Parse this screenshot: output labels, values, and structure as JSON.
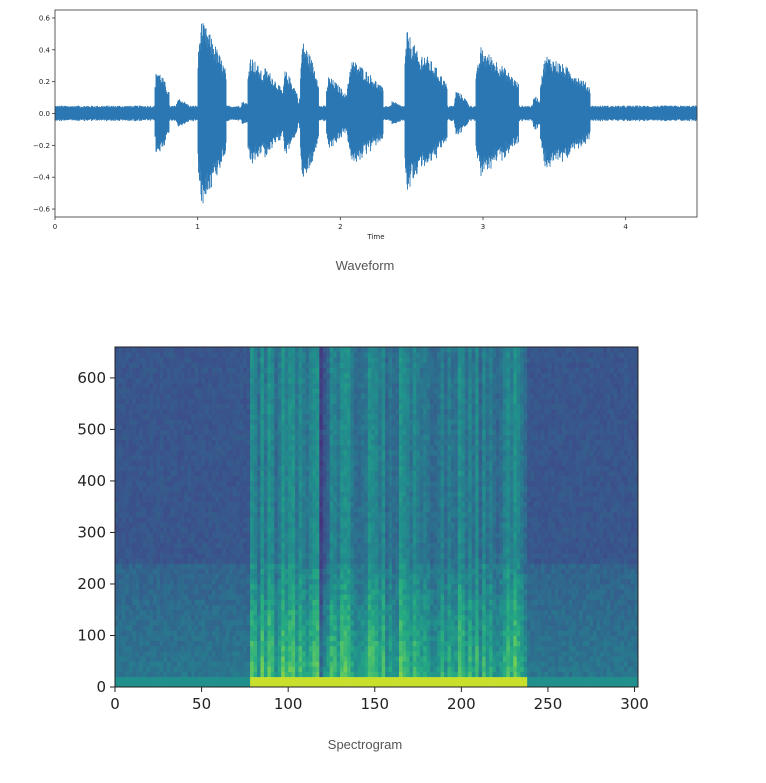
{
  "chart_data": [
    {
      "type": "line",
      "name": "waveform",
      "xlabel": "Time",
      "ylabel": "",
      "xlim": [
        0,
        4.5
      ],
      "ylim": [
        -0.65,
        0.65
      ],
      "xticks": [
        "0",
        "1",
        "2",
        "3",
        "4"
      ],
      "yticks": [
        "0.6",
        "0.4",
        "0.2",
        "0.0",
        "−0.2",
        "−0.4",
        "−0.6"
      ],
      "color": "#2a77b4",
      "baseline_amplitude": 0.05,
      "segments": [
        {
          "start": 0.7,
          "end": 0.8,
          "peak": 0.3
        },
        {
          "start": 0.85,
          "end": 0.95,
          "peak": 0.1
        },
        {
          "start": 1.0,
          "end": 1.2,
          "peak": 0.6
        },
        {
          "start": 1.3,
          "end": 1.4,
          "peak": 0.08
        },
        {
          "start": 1.35,
          "end": 1.5,
          "peak": 0.38
        },
        {
          "start": 1.45,
          "end": 1.6,
          "peak": 0.3
        },
        {
          "start": 1.6,
          "end": 1.7,
          "peak": 0.28
        },
        {
          "start": 1.7,
          "end": 1.8,
          "peak": 0.1
        },
        {
          "start": 1.72,
          "end": 1.85,
          "peak": 0.47
        },
        {
          "start": 1.9,
          "end": 2.05,
          "peak": 0.24
        },
        {
          "start": 2.05,
          "end": 2.3,
          "peak": 0.35
        },
        {
          "start": 2.35,
          "end": 2.45,
          "peak": 0.08
        },
        {
          "start": 2.45,
          "end": 2.6,
          "peak": 0.53
        },
        {
          "start": 2.55,
          "end": 2.75,
          "peak": 0.4
        },
        {
          "start": 2.8,
          "end": 2.9,
          "peak": 0.15
        },
        {
          "start": 2.95,
          "end": 3.25,
          "peak": 0.42
        },
        {
          "start": 3.35,
          "end": 3.42,
          "peak": 0.12
        },
        {
          "start": 3.4,
          "end": 3.75,
          "peak": 0.38
        }
      ]
    },
    {
      "type": "heatmap",
      "name": "spectrogram",
      "xlim": [
        0,
        302
      ],
      "ylim": [
        0,
        660
      ],
      "xticks": [
        0,
        50,
        100,
        150,
        200,
        250,
        300
      ],
      "yticks": [
        0,
        100,
        200,
        300,
        400,
        500,
        600
      ],
      "colormap": "viridis",
      "speech_region": [
        78,
        236
      ],
      "high_band_cutoff": 240,
      "low_gap": [
        118,
        122
      ]
    }
  ],
  "captions": {
    "waveform": "Waveform",
    "spectrogram": "Spectrogram"
  }
}
